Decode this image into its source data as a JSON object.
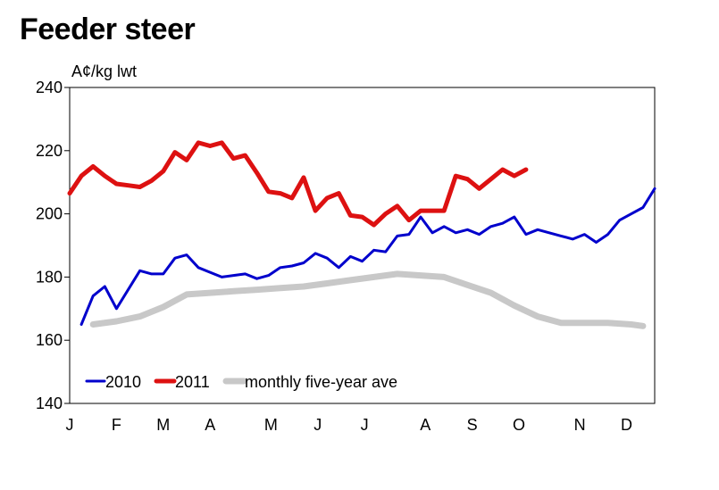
{
  "chart_data": {
    "type": "line",
    "title": "Feeder steer",
    "ylabel": "A¢/kg lwt",
    "xlabel": "",
    "ylim": [
      140,
      240
    ],
    "yticks": [
      140,
      160,
      180,
      200,
      220,
      240
    ],
    "xlim": [
      0,
      12
    ],
    "x_tick_labels": [
      {
        "label": "J",
        "x": 0
      },
      {
        "label": "F",
        "x": 1
      },
      {
        "label": "M",
        "x": 2
      },
      {
        "label": "A",
        "x": 3
      },
      {
        "label": "M",
        "x": 4.3
      },
      {
        "label": "J",
        "x": 5.3
      },
      {
        "label": "J",
        "x": 6.3
      },
      {
        "label": "A",
        "x": 7.6
      },
      {
        "label": "S",
        "x": 8.6
      },
      {
        "label": "O",
        "x": 9.6
      },
      {
        "label": "N",
        "x": 10.9
      },
      {
        "label": "D",
        "x": 11.9
      }
    ],
    "legend_position": "bottom-left",
    "grid": false,
    "series": [
      {
        "name": "2010",
        "color": "#0000cc",
        "points": [
          [
            0.25,
            165
          ],
          [
            0.5,
            174
          ],
          [
            0.75,
            177
          ],
          [
            1.0,
            170
          ],
          [
            1.25,
            176
          ],
          [
            1.5,
            182
          ],
          [
            1.75,
            181
          ],
          [
            2.0,
            181
          ],
          [
            2.25,
            186
          ],
          [
            2.5,
            187
          ],
          [
            2.75,
            183
          ],
          [
            3.0,
            181.5
          ],
          [
            3.25,
            180
          ],
          [
            3.5,
            180.5
          ],
          [
            3.75,
            181
          ],
          [
            4.0,
            179.5
          ],
          [
            4.25,
            180.5
          ],
          [
            4.5,
            183
          ],
          [
            4.75,
            183.5
          ],
          [
            5.0,
            184.5
          ],
          [
            5.25,
            187.5
          ],
          [
            5.5,
            186
          ],
          [
            5.75,
            183
          ],
          [
            6.0,
            186.5
          ],
          [
            6.25,
            185
          ],
          [
            6.5,
            188.5
          ],
          [
            6.75,
            188
          ],
          [
            7.0,
            193
          ],
          [
            7.25,
            193.5
          ],
          [
            7.5,
            199
          ],
          [
            7.75,
            194
          ],
          [
            8.0,
            196
          ],
          [
            8.25,
            194
          ],
          [
            8.5,
            195
          ],
          [
            8.75,
            193.5
          ],
          [
            9.0,
            196
          ],
          [
            9.25,
            197
          ],
          [
            9.5,
            199
          ],
          [
            9.75,
            193.5
          ],
          [
            10.0,
            195
          ],
          [
            10.5,
            193
          ],
          [
            10.75,
            192
          ],
          [
            11.0,
            193.5
          ],
          [
            11.25,
            191
          ],
          [
            11.5,
            193.5
          ],
          [
            11.75,
            198
          ],
          [
            12.0,
            200
          ],
          [
            12.25,
            202
          ],
          [
            12.5,
            208
          ]
        ]
      },
      {
        "name": "2011",
        "color": "#dd1111",
        "points": [
          [
            0.0,
            206.5
          ],
          [
            0.25,
            212
          ],
          [
            0.5,
            215
          ],
          [
            0.75,
            212
          ],
          [
            1.0,
            209.5
          ],
          [
            1.25,
            209
          ],
          [
            1.5,
            208.5
          ],
          [
            1.75,
            210.5
          ],
          [
            2.0,
            213.5
          ],
          [
            2.25,
            219.5
          ],
          [
            2.5,
            217
          ],
          [
            2.75,
            222.5
          ],
          [
            3.0,
            221.5
          ],
          [
            3.25,
            222.5
          ],
          [
            3.5,
            217.5
          ],
          [
            3.75,
            218.5
          ],
          [
            4.0,
            213
          ],
          [
            4.25,
            207
          ],
          [
            4.5,
            206.5
          ],
          [
            4.75,
            205
          ],
          [
            5.0,
            211.5
          ],
          [
            5.25,
            201
          ],
          [
            5.5,
            205
          ],
          [
            5.75,
            206.5
          ],
          [
            6.0,
            199.5
          ],
          [
            6.25,
            199
          ],
          [
            6.5,
            196.5
          ],
          [
            6.75,
            200
          ],
          [
            7.0,
            202.5
          ],
          [
            7.25,
            198
          ],
          [
            7.5,
            201
          ],
          [
            7.75,
            201
          ],
          [
            8.0,
            201
          ],
          [
            8.25,
            212
          ],
          [
            8.5,
            211
          ],
          [
            8.75,
            208
          ],
          [
            9.0,
            211
          ],
          [
            9.25,
            214
          ],
          [
            9.5,
            212
          ],
          [
            9.75,
            214
          ]
        ]
      },
      {
        "name": "monthly five-year ave",
        "color": "#c8c8c8",
        "points": [
          [
            0.5,
            165
          ],
          [
            1.0,
            166
          ],
          [
            1.5,
            167.5
          ],
          [
            2.0,
            170.5
          ],
          [
            2.5,
            174.5
          ],
          [
            3.0,
            175
          ],
          [
            3.5,
            175.5
          ],
          [
            4.0,
            176
          ],
          [
            4.5,
            176.5
          ],
          [
            5.0,
            177
          ],
          [
            5.5,
            178
          ],
          [
            6.0,
            179
          ],
          [
            6.5,
            180
          ],
          [
            7.0,
            181
          ],
          [
            7.5,
            180.5
          ],
          [
            8.0,
            180
          ],
          [
            8.5,
            177.5
          ],
          [
            9.0,
            175
          ],
          [
            9.5,
            171
          ],
          [
            10.0,
            167.5
          ],
          [
            10.5,
            165.5
          ],
          [
            11.0,
            165.5
          ],
          [
            11.5,
            165.5
          ],
          [
            12.0,
            165
          ],
          [
            12.25,
            164.5
          ]
        ]
      }
    ]
  }
}
